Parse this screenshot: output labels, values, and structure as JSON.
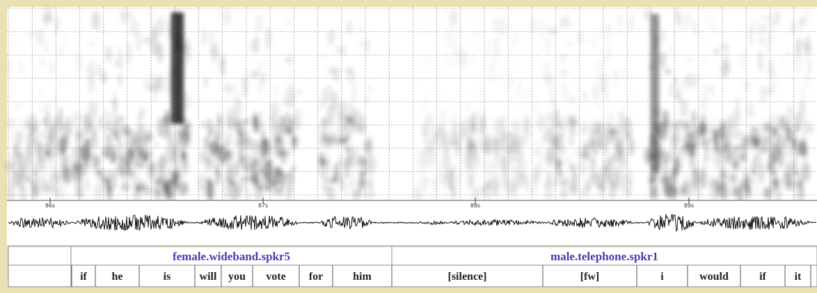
{
  "time_marks": [
    "86s",
    "87s",
    "88s",
    "89s"
  ],
  "speakers": [
    "female.wideband.spkr5",
    "male.telephone.spkr1"
  ],
  "words": [
    "if",
    "he",
    "is",
    "will",
    "you",
    "vote",
    "for",
    "him",
    "[silence]",
    "[fw]",
    "i",
    "would",
    "if",
    "it"
  ]
}
